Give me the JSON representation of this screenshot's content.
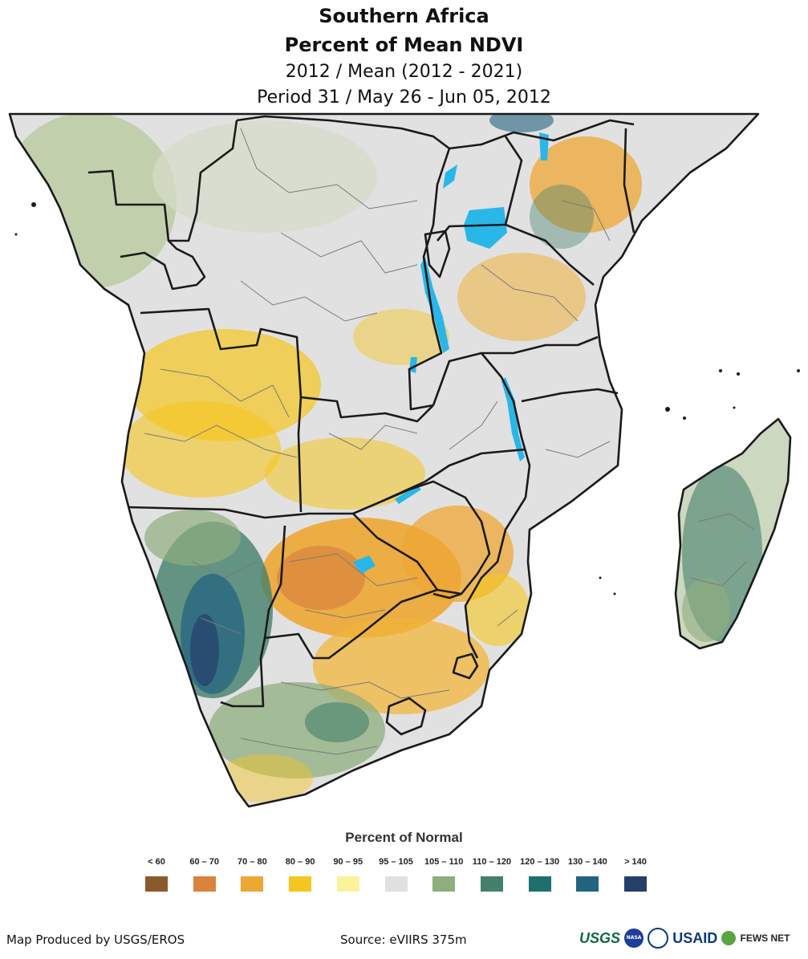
{
  "title": {
    "line1": "Southern Africa",
    "line2": "Percent of Mean NDVI",
    "line3": "2012 / Mean (2012 - 2021)",
    "line4": "Period 31 / May 26 - Jun 05, 2012"
  },
  "legend": {
    "title": "Percent of Normal",
    "items": [
      {
        "label": "< 60",
        "color": "#8b5a2b"
      },
      {
        "label": "60 – 70",
        "color": "#d9833d"
      },
      {
        "label": "70 – 80",
        "color": "#eda733"
      },
      {
        "label": "80 – 90",
        "color": "#f5c61f"
      },
      {
        "label": "90 – 95",
        "color": "#fbf29a"
      },
      {
        "label": "95 – 105",
        "color": "#e1e1e1"
      },
      {
        "label": "105 – 110",
        "color": "#8fae7d"
      },
      {
        "label": "110 – 120",
        "color": "#44806b"
      },
      {
        "label": "120 – 130",
        "color": "#1f6e70"
      },
      {
        "label": "130 – 140",
        "color": "#226480"
      },
      {
        "label": "> 140",
        "color": "#253f6b"
      }
    ]
  },
  "footer": {
    "credit": "Map Produced by USGS/EROS",
    "source": "Source: eVIIRS 375m"
  },
  "logos": {
    "usgs": "USGS",
    "nasa": "NASA",
    "usaid": "USAID",
    "fewsnet": "FEWS NET"
  },
  "colors": {
    "water": "#29b6e8",
    "land_base": "#e1e1e1",
    "border": "#1a1a1a"
  }
}
